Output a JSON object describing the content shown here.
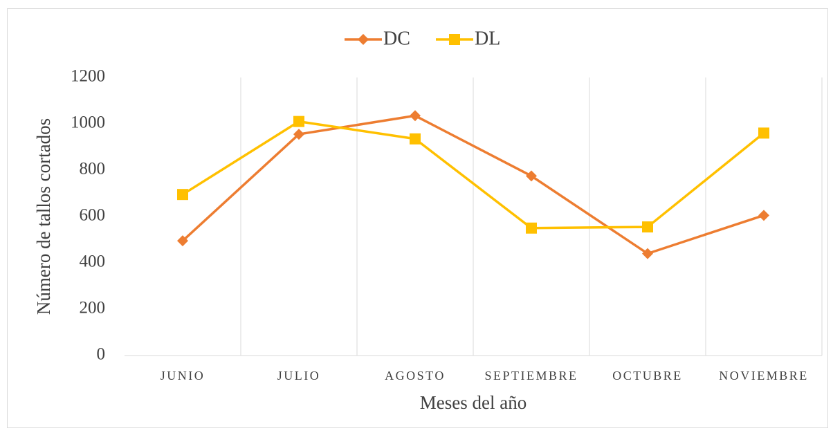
{
  "chart_data": {
    "type": "line",
    "x_label": "Meses del año",
    "y_label": "Número de tallos cortados",
    "categories": [
      "JUNIO",
      "JULIO",
      "AGOSTO",
      "SEPTIEMBRE",
      "OCTUBRE",
      "NOVIEMBRE"
    ],
    "series": [
      {
        "name": "DC",
        "color": "#ED7D31",
        "marker": "diamond",
        "values": [
          495,
          955,
          1035,
          775,
          440,
          605
        ]
      },
      {
        "name": "DL",
        "color": "#FFC000",
        "marker": "square",
        "values": [
          695,
          1010,
          935,
          550,
          555,
          960
        ]
      }
    ],
    "ylim": [
      0,
      1200
    ],
    "yticks": [
      0,
      200,
      400,
      600,
      800,
      1000,
      1200
    ],
    "legend": "top"
  }
}
